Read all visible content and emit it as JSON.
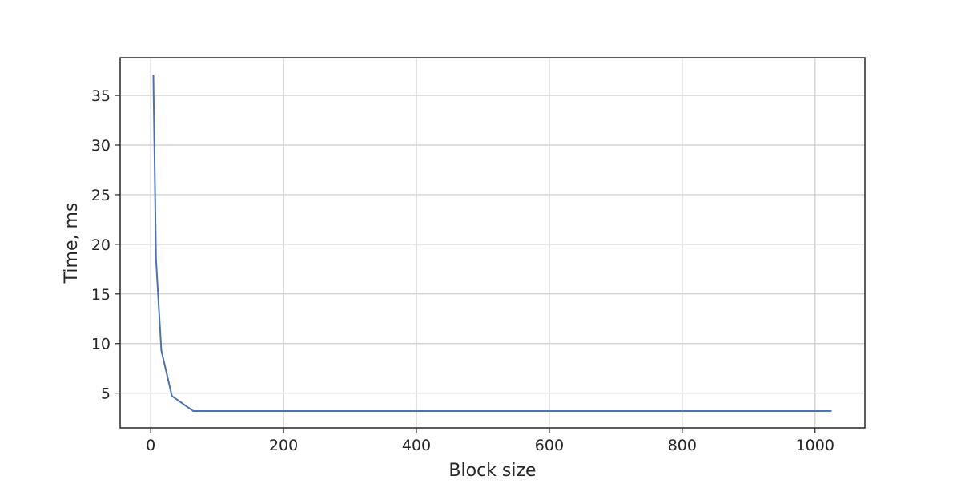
{
  "chart_data": {
    "type": "line",
    "title": "",
    "xlabel": "Block size",
    "ylabel": "Time, ms",
    "xlim": [
      -46,
      1075
    ],
    "ylim": [
      1.5,
      38.8
    ],
    "x_ticks": [
      0,
      200,
      400,
      600,
      800,
      1000
    ],
    "y_ticks": [
      5,
      10,
      15,
      20,
      25,
      30,
      35
    ],
    "x_tick_labels": [
      "0",
      "200",
      "400",
      "600",
      "800",
      "1000"
    ],
    "y_tick_labels": [
      "5",
      "10",
      "15",
      "20",
      "25",
      "30",
      "35"
    ],
    "grid": true,
    "legend": "none",
    "series": [
      {
        "color": "#4c72b0",
        "x": [
          4,
          8,
          16,
          32,
          64,
          128,
          256,
          512,
          1024
        ],
        "y": [
          37.0,
          18.5,
          9.3,
          4.7,
          3.2,
          3.2,
          3.2,
          3.2,
          3.2
        ]
      }
    ]
  }
}
